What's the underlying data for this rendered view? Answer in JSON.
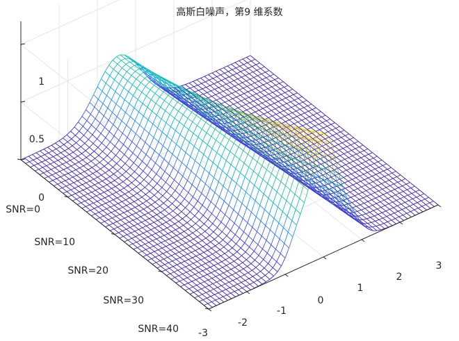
{
  "chart_data": {
    "type": "surface",
    "title": "高斯白噪声，第9 维系数",
    "z_ticks": [
      "0",
      "0.5",
      "1"
    ],
    "z_range": [
      0,
      1
    ],
    "x_ticks": [
      "-3",
      "-2",
      "-1",
      "0",
      "1",
      "2",
      "3"
    ],
    "x_range": [
      -3,
      3
    ],
    "y_ticks": [
      "SNR=0",
      "SNR=10",
      "SNR=20",
      "SNR=30",
      "SNR=40"
    ],
    "y_range": [
      0,
      40
    ],
    "colormap": "parula",
    "grid": true,
    "colors": {
      "axis": "#262626",
      "grid": "#e6e6e6"
    }
  }
}
